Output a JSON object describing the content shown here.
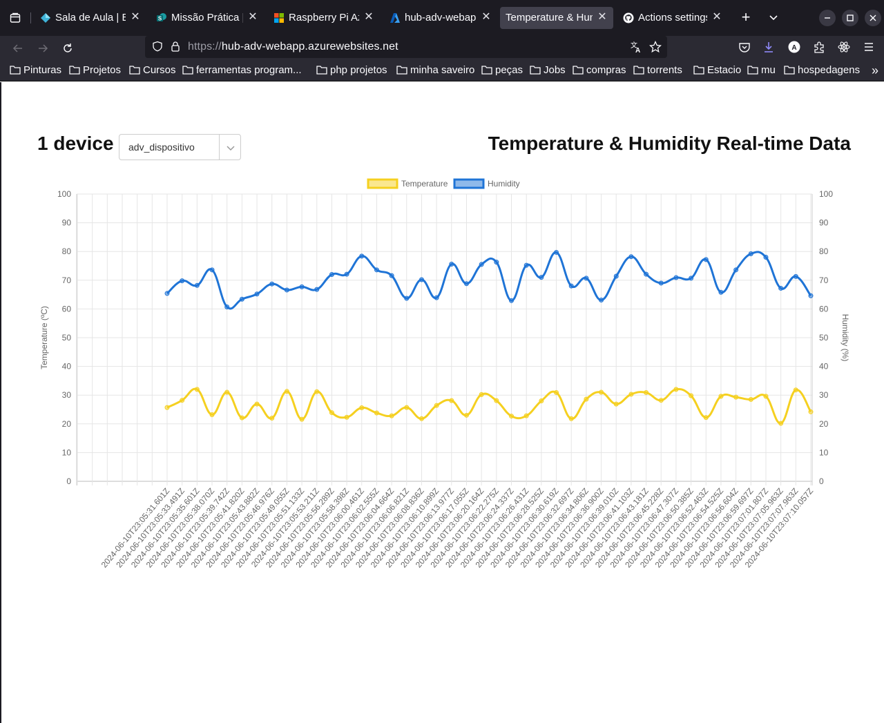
{
  "tabs": [
    {
      "title": "Sala de Aula | Est",
      "icon": "diamond-icon",
      "active": false
    },
    {
      "title": "Missão Prática | N",
      "icon": "sharepoint-icon",
      "active": false
    },
    {
      "title": "Raspberry Pi Azu",
      "icon": "microsoft-icon",
      "active": false
    },
    {
      "title": "hub-adv-webapp",
      "icon": "azure-icon",
      "active": false
    },
    {
      "title": "Temperature & Hum",
      "icon": "",
      "active": true
    },
    {
      "title": "Actions settings ·",
      "icon": "github-icon",
      "active": false
    }
  ],
  "address_bar": {
    "scheme": "https://",
    "host": "hub-adv-webapp.azurewebsites.net"
  },
  "bookmarks": [
    "Pinturas",
    "Projetos",
    "Cursos",
    "ferramentas program...",
    "php projetos",
    "minha saveiro",
    "peças",
    "Jobs",
    "compras",
    "torrents",
    "Estacio",
    "mu",
    "hospedagens"
  ],
  "page": {
    "device_count": "1 device",
    "device_select": "adv_dispositivo",
    "heading": "Temperature & Humidity Real-time Data"
  },
  "colors": {
    "temperature": "#f5d020",
    "humidity": "#1f74d6",
    "grid": "#e5e5e5"
  },
  "chart_data": {
    "type": "line",
    "legend_position": "top",
    "grid": true,
    "y_left": {
      "label": "Temperature (ºC)",
      "ylim": [
        0,
        100
      ],
      "ticks": [
        0,
        10,
        20,
        30,
        40,
        50,
        60,
        70,
        80,
        90,
        100
      ]
    },
    "y_right": {
      "label": "Humidity (%)",
      "ylim": [
        0,
        100
      ],
      "ticks": [
        0,
        10,
        20,
        30,
        40,
        50,
        60,
        70,
        80,
        90,
        100
      ]
    },
    "x": [
      "2024-06-10T23:05:31.601Z",
      "2024-06-10T23:05:33.491Z",
      "2024-06-10T23:05:35.601Z",
      "2024-06-10T23:05:38.070Z",
      "2024-06-10T23:05:39.742Z",
      "2024-06-10T23:05:41.820Z",
      "2024-06-10T23:05:43.882Z",
      "2024-06-10T23:05:46.976Z",
      "2024-06-10T23:05:49.055Z",
      "2024-06-10T23:05:51.133Z",
      "2024-06-10T23:05:53.211Z",
      "2024-06-10T23:05:56.289Z",
      "2024-06-10T23:05:58.398Z",
      "2024-06-10T23:06:00.461Z",
      "2024-06-10T23:06:02.555Z",
      "2024-06-10T23:06:04.664Z",
      "2024-06-10T23:06:06.821Z",
      "2024-06-10T23:06:08.836Z",
      "2024-06-10T23:06:10.899Z",
      "2024-06-10T23:06:13.977Z",
      "2024-06-10T23:06:17.055Z",
      "2024-06-10T23:06:20.164Z",
      "2024-06-10T23:06:22.275Z",
      "2024-06-10T23:06:24.337Z",
      "2024-06-10T23:06:26.431Z",
      "2024-06-10T23:06:28.525Z",
      "2024-06-10T23:06:30.619Z",
      "2024-06-10T23:06:32.697Z",
      "2024-06-10T23:06:34.806Z",
      "2024-06-10T23:06:36.900Z",
      "2024-06-10T23:06:39.010Z",
      "2024-06-10T23:06:41.103Z",
      "2024-06-10T23:06:43.181Z",
      "2024-06-10T23:06:45.228Z",
      "2024-06-10T23:06:47.307Z",
      "2024-06-10T23:06:50.385Z",
      "2024-06-10T23:06:52.463Z",
      "2024-06-10T23:06:54.525Z",
      "2024-06-10T23:06:56.604Z",
      "2024-06-10T23:06:59.697Z",
      "2024-06-10T23:07:01.807Z",
      "2024-06-10T23:07:05.963Z",
      "2024-06-10T23:07:07.963Z",
      "2024-06-10T23:07:10.057Z"
    ],
    "series": [
      {
        "name": "Temperature",
        "axis": "left",
        "values": [
          25.7,
          28.2,
          32.0,
          23.2,
          31.0,
          22.1,
          26.9,
          22.0,
          31.3,
          21.6,
          31.2,
          23.9,
          22.3,
          25.6,
          23.8,
          22.8,
          25.7,
          21.8,
          26.4,
          28.1,
          23.0,
          30.2,
          28.1,
          22.7,
          22.8,
          28.0,
          30.9,
          21.8,
          28.6,
          31.0,
          26.9,
          30.3,
          30.9,
          28.2,
          32.0,
          29.8,
          22.2,
          29.6,
          29.3,
          28.5,
          29.6,
          20.2,
          31.8,
          24.2
        ]
      },
      {
        "name": "Humidity",
        "axis": "right",
        "values": [
          65.4,
          69.8,
          68.2,
          73.6,
          60.7,
          63.4,
          65.2,
          68.7,
          66.6,
          67.7,
          66.8,
          72.0,
          72.1,
          78.4,
          73.6,
          71.6,
          63.7,
          70.2,
          63.9,
          75.6,
          68.8,
          75.5,
          76.3,
          62.9,
          75.2,
          71.0,
          79.7,
          68.0,
          70.7,
          63.1,
          71.4,
          78.2,
          72.1,
          69.0,
          70.9,
          70.7,
          77.2,
          65.8,
          73.6,
          79.2,
          78.0,
          67.2,
          71.3,
          64.6
        ]
      }
    ]
  }
}
